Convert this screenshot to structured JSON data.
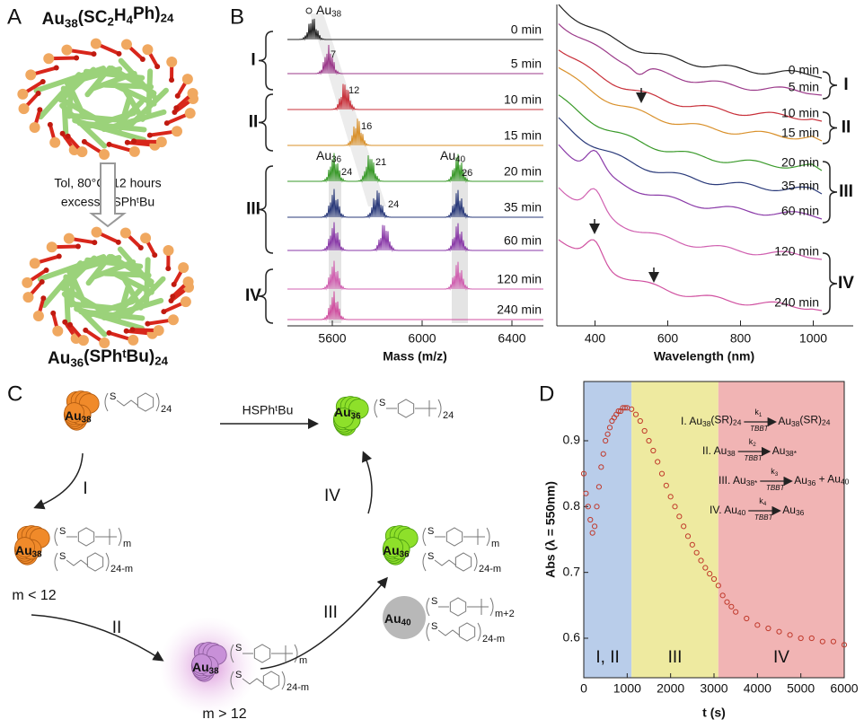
{
  "panel_a": {
    "label": "A",
    "top_formula": [
      "Au",
      "38",
      "(SC",
      "2",
      "H",
      "4",
      "Ph)",
      "24"
    ],
    "conditions": [
      "Tol, 80°C, 12 hours",
      "excess HSPhᵗBu"
    ],
    "bottom_formula": [
      "Au",
      "36",
      "(SPhᵗBu)",
      "24"
    ]
  },
  "panel_b": {
    "label": "B",
    "times": [
      "0 min",
      "5 min",
      "10 min",
      "15 min",
      "20 min",
      "35 min",
      "60 min",
      "120 min",
      "240 min"
    ],
    "colors": [
      "#222222",
      "#9b3a8a",
      "#c8303a",
      "#d9902a",
      "#3a9a2a",
      "#2a3a7a",
      "#8a3aa8",
      "#d060b0",
      "#d050a0"
    ],
    "groups": [
      "I",
      "II",
      "III",
      "IV"
    ],
    "mass": {
      "xlabel": "Mass (m/z)",
      "xlim": [
        5400,
        6540
      ],
      "xticks": [
        5600,
        6000,
        6400
      ],
      "species": [
        [
          "Au",
          "38"
        ],
        [
          "Au",
          "36"
        ],
        [
          "Au",
          "40"
        ]
      ],
      "peak_labels": [
        "7",
        "12",
        "16",
        "24",
        "21",
        "26",
        "24"
      ]
    },
    "uvvis": {
      "xlabel": "Wavelength (nm)",
      "xlim": [
        300,
        1100
      ],
      "xticks": [
        400,
        600,
        800,
        1000
      ]
    }
  },
  "panel_c": {
    "label": "C",
    "reagent": "HSPhᵗBu",
    "steps": [
      "I",
      "II",
      "III",
      "IV"
    ],
    "conditions": [
      "m < 12",
      "m > 12"
    ],
    "clusters": [
      [
        "Au",
        "38"
      ],
      [
        "Au",
        "36"
      ],
      [
        "Au",
        "38"
      ],
      [
        "Au",
        "38"
      ],
      [
        "Au",
        "36"
      ],
      [
        "Au",
        "40"
      ]
    ],
    "ligand_atom": "S",
    "ligand_subs": [
      "24",
      "24",
      "m",
      "24-m",
      "m",
      "24-m",
      "m",
      "24-m",
      "m+2",
      "24-m"
    ]
  },
  "chart_data": {
    "type": "scatter",
    "label": "D",
    "xlabel": "t (s)",
    "ylabel": "Abs (λ = 550nm)",
    "xlim": [
      0,
      6000
    ],
    "ylim": [
      0.54,
      0.99
    ],
    "xticks": [
      0,
      1000,
      2000,
      3000,
      4000,
      5000,
      6000
    ],
    "yticks": [
      0.6,
      0.7,
      0.8,
      0.9
    ],
    "color": "#c0392b",
    "regions": [
      {
        "label": "I, II",
        "start": 0,
        "end": 1100,
        "color": "#b9cdea"
      },
      {
        "label": "III",
        "start": 1100,
        "end": 3100,
        "color": "#eeeaa0"
      },
      {
        "label": "IV",
        "start": 3100,
        "end": 6000,
        "color": "#f1b4b4"
      }
    ],
    "x": [
      0,
      50,
      100,
      150,
      200,
      250,
      300,
      350,
      400,
      450,
      500,
      550,
      600,
      650,
      700,
      750,
      800,
      850,
      900,
      950,
      1000,
      1100,
      1200,
      1300,
      1400,
      1500,
      1600,
      1700,
      1800,
      1900,
      2000,
      2100,
      2200,
      2300,
      2400,
      2500,
      2600,
      2700,
      2800,
      2900,
      3000,
      3100,
      3200,
      3300,
      3400,
      3500,
      3750,
      4000,
      4250,
      4500,
      4750,
      5000,
      5250,
      5500,
      5750,
      6000
    ],
    "y": [
      0.85,
      0.82,
      0.8,
      0.78,
      0.76,
      0.77,
      0.8,
      0.83,
      0.86,
      0.88,
      0.9,
      0.91,
      0.92,
      0.93,
      0.935,
      0.94,
      0.945,
      0.945,
      0.95,
      0.95,
      0.95,
      0.948,
      0.94,
      0.93,
      0.915,
      0.9,
      0.885,
      0.868,
      0.85,
      0.832,
      0.815,
      0.8,
      0.785,
      0.77,
      0.755,
      0.742,
      0.73,
      0.718,
      0.707,
      0.698,
      0.69,
      0.68,
      0.665,
      0.655,
      0.648,
      0.64,
      0.63,
      0.62,
      0.615,
      0.61,
      0.605,
      0.6,
      0.6,
      0.595,
      0.595,
      0.59
    ],
    "catalyst": "TBBT",
    "equations": [
      {
        "lhs": [
          "I. Au",
          "38",
          "(SR)",
          "24"
        ],
        "k": [
          "k",
          "1"
        ],
        "rhs": [
          "Au",
          "38",
          "(SR)",
          "24"
        ]
      },
      {
        "lhs": [
          "II. Au",
          "38"
        ],
        "k": [
          "k",
          "2"
        ],
        "rhs": [
          "Au",
          "38*"
        ]
      },
      {
        "lhs": [
          "III. Au",
          "38*"
        ],
        "k": [
          "k",
          "3"
        ],
        "rhs": [
          "Au",
          "36",
          " + Au",
          "40"
        ]
      },
      {
        "lhs": [
          "IV. Au",
          "40"
        ],
        "k": [
          "k",
          "4"
        ],
        "rhs": [
          "Au",
          "36"
        ]
      }
    ]
  }
}
